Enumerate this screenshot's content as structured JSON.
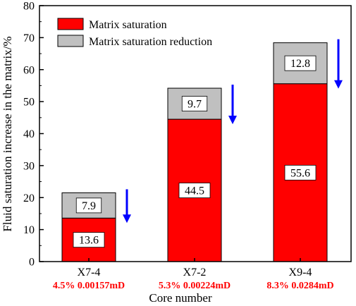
{
  "chart_data": {
    "type": "bar",
    "stacked": true,
    "categories": [
      "X7-4",
      "X7-2",
      "X9-4"
    ],
    "category_sublabels": [
      "4.5%  0.00157mD",
      "5.3%  0.00224mD",
      "8.3%  0.0284mD"
    ],
    "series": [
      {
        "name": "Matrix saturation",
        "values": [
          13.6,
          44.5,
          55.6
        ],
        "color": "#ff0000"
      },
      {
        "name": "Matrix saturation reduction",
        "values": [
          7.9,
          9.7,
          12.8
        ],
        "color": "#c0c0c0"
      }
    ],
    "xlabel": "Core number",
    "ylabel": "Fluid saturation increase in the matrix/%",
    "ylim": [
      0,
      80
    ],
    "yticks": [
      0,
      10,
      20,
      30,
      40,
      50,
      60,
      70,
      80
    ],
    "grid": false,
    "legend_position": "top-left",
    "annotations": {
      "downward_arrow_color": "#0000ff",
      "sublabel_color": "#ff0000"
    }
  }
}
